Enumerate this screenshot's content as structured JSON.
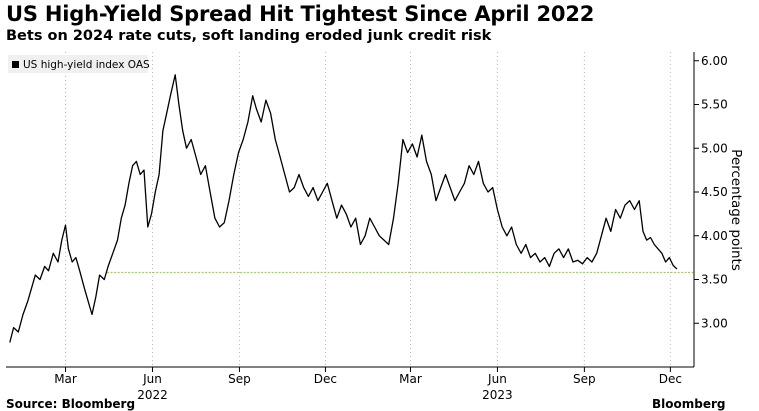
{
  "title": "US High-Yield Spread Hit Tightest Since April 2022",
  "subtitle": "Bets on 2024 rate cuts, soft landing eroded junk credit risk",
  "source": "Source: Bloomberg",
  "brand": "Bloomberg",
  "colors": {
    "line": "#000000",
    "reference": "#9bd63a",
    "grid": "#b8b8b8",
    "legend_swatch": "#000000"
  },
  "chart_data": {
    "type": "line",
    "title": "US High-Yield Spread Hit Tightest Since April 2022",
    "ylabel": "Percentage points",
    "y_axis_position": "right",
    "ylim": [
      2.5,
      6.1
    ],
    "yticks": [
      3.0,
      3.5,
      4.0,
      4.5,
      5.0,
      5.5,
      6.0
    ],
    "ytick_labels": [
      "3.00",
      "3.50",
      "4.00",
      "4.50",
      "5.00",
      "5.50",
      "6.00"
    ],
    "xticks": [
      {
        "x": "2022-03-01",
        "label": "Mar"
      },
      {
        "x": "2022-06-01",
        "label": "Jun"
      },
      {
        "x": "2022-09-01",
        "label": "Sep"
      },
      {
        "x": "2022-12-01",
        "label": "Dec"
      },
      {
        "x": "2023-03-01",
        "label": "Mar"
      },
      {
        "x": "2023-06-01",
        "label": "Jun"
      },
      {
        "x": "2023-09-01",
        "label": "Sep"
      },
      {
        "x": "2023-12-01",
        "label": "Dec"
      }
    ],
    "year_labels": [
      {
        "x": "2022-06-01",
        "label": "2022"
      },
      {
        "x": "2023-06-01",
        "label": "2023"
      }
    ],
    "grid": "vertical only",
    "legend": {
      "placement": "top-left",
      "entries": [
        "US high-yield index OAS"
      ]
    },
    "reference_line": {
      "y": 3.58,
      "color": "#9bd63a",
      "style": "dotted"
    },
    "series": [
      {
        "name": "US high-yield index OAS",
        "points": [
          [
            "2022-01-01",
            2.78
          ],
          [
            "2022-01-05",
            2.95
          ],
          [
            "2022-01-10",
            2.9
          ],
          [
            "2022-01-15",
            3.1
          ],
          [
            "2022-01-20",
            3.25
          ],
          [
            "2022-01-24",
            3.4
          ],
          [
            "2022-01-28",
            3.55
          ],
          [
            "2022-02-02",
            3.5
          ],
          [
            "2022-02-07",
            3.65
          ],
          [
            "2022-02-11",
            3.6
          ],
          [
            "2022-02-16",
            3.8
          ],
          [
            "2022-02-21",
            3.7
          ],
          [
            "2022-02-25",
            3.95
          ],
          [
            "2022-03-01",
            4.12
          ],
          [
            "2022-03-04",
            3.85
          ],
          [
            "2022-03-08",
            3.7
          ],
          [
            "2022-03-12",
            3.75
          ],
          [
            "2022-03-16",
            3.6
          ],
          [
            "2022-03-21",
            3.4
          ],
          [
            "2022-03-25",
            3.25
          ],
          [
            "2022-03-29",
            3.1
          ],
          [
            "2022-04-02",
            3.3
          ],
          [
            "2022-04-06",
            3.55
          ],
          [
            "2022-04-11",
            3.5
          ],
          [
            "2022-04-15",
            3.65
          ],
          [
            "2022-04-20",
            3.8
          ],
          [
            "2022-04-25",
            3.95
          ],
          [
            "2022-04-29",
            4.2
          ],
          [
            "2022-05-03",
            4.35
          ],
          [
            "2022-05-07",
            4.6
          ],
          [
            "2022-05-11",
            4.8
          ],
          [
            "2022-05-15",
            4.85
          ],
          [
            "2022-05-19",
            4.7
          ],
          [
            "2022-05-23",
            4.75
          ],
          [
            "2022-05-27",
            4.1
          ],
          [
            "2022-05-31",
            4.25
          ],
          [
            "2022-06-04",
            4.5
          ],
          [
            "2022-06-08",
            4.7
          ],
          [
            "2022-06-12",
            5.2
          ],
          [
            "2022-06-16",
            5.4
          ],
          [
            "2022-06-20",
            5.6
          ],
          [
            "2022-06-25",
            5.84
          ],
          [
            "2022-06-29",
            5.5
          ],
          [
            "2022-07-03",
            5.2
          ],
          [
            "2022-07-07",
            5.0
          ],
          [
            "2022-07-12",
            5.1
          ],
          [
            "2022-07-17",
            4.9
          ],
          [
            "2022-07-22",
            4.7
          ],
          [
            "2022-07-27",
            4.8
          ],
          [
            "2022-08-01",
            4.5
          ],
          [
            "2022-08-06",
            4.2
          ],
          [
            "2022-08-11",
            4.1
          ],
          [
            "2022-08-16",
            4.15
          ],
          [
            "2022-08-21",
            4.4
          ],
          [
            "2022-08-26",
            4.7
          ],
          [
            "2022-08-31",
            4.95
          ],
          [
            "2022-09-05",
            5.1
          ],
          [
            "2022-09-10",
            5.3
          ],
          [
            "2022-09-15",
            5.6
          ],
          [
            "2022-09-19",
            5.45
          ],
          [
            "2022-09-24",
            5.3
          ],
          [
            "2022-09-29",
            5.55
          ],
          [
            "2022-10-04",
            5.4
          ],
          [
            "2022-10-09",
            5.1
          ],
          [
            "2022-10-14",
            4.9
          ],
          [
            "2022-10-19",
            4.7
          ],
          [
            "2022-10-24",
            4.5
          ],
          [
            "2022-10-29",
            4.55
          ],
          [
            "2022-11-03",
            4.7
          ],
          [
            "2022-11-08",
            4.55
          ],
          [
            "2022-11-13",
            4.45
          ],
          [
            "2022-11-18",
            4.55
          ],
          [
            "2022-11-23",
            4.4
          ],
          [
            "2022-11-28",
            4.5
          ],
          [
            "2022-12-03",
            4.6
          ],
          [
            "2022-12-08",
            4.4
          ],
          [
            "2022-12-13",
            4.2
          ],
          [
            "2022-12-18",
            4.35
          ],
          [
            "2022-12-23",
            4.25
          ],
          [
            "2022-12-28",
            4.1
          ],
          [
            "2023-01-02",
            4.2
          ],
          [
            "2023-01-07",
            3.9
          ],
          [
            "2023-01-12",
            4.0
          ],
          [
            "2023-01-17",
            4.2
          ],
          [
            "2023-01-22",
            4.1
          ],
          [
            "2023-01-27",
            4.0
          ],
          [
            "2023-02-01",
            3.95
          ],
          [
            "2023-02-06",
            3.9
          ],
          [
            "2023-02-11",
            4.2
          ],
          [
            "2023-02-16",
            4.6
          ],
          [
            "2023-02-21",
            5.1
          ],
          [
            "2023-02-26",
            4.95
          ],
          [
            "2023-03-03",
            5.05
          ],
          [
            "2023-03-08",
            4.9
          ],
          [
            "2023-03-13",
            5.15
          ],
          [
            "2023-03-18",
            4.85
          ],
          [
            "2023-03-23",
            4.7
          ],
          [
            "2023-03-28",
            4.4
          ],
          [
            "2023-04-02",
            4.55
          ],
          [
            "2023-04-07",
            4.7
          ],
          [
            "2023-04-12",
            4.55
          ],
          [
            "2023-04-17",
            4.4
          ],
          [
            "2023-04-22",
            4.5
          ],
          [
            "2023-04-27",
            4.6
          ],
          [
            "2023-05-02",
            4.8
          ],
          [
            "2023-05-07",
            4.7
          ],
          [
            "2023-05-12",
            4.85
          ],
          [
            "2023-05-17",
            4.6
          ],
          [
            "2023-05-22",
            4.5
          ],
          [
            "2023-05-27",
            4.55
          ],
          [
            "2023-06-01",
            4.3
          ],
          [
            "2023-06-06",
            4.1
          ],
          [
            "2023-06-11",
            4.0
          ],
          [
            "2023-06-16",
            4.1
          ],
          [
            "2023-06-21",
            3.9
          ],
          [
            "2023-06-26",
            3.8
          ],
          [
            "2023-07-01",
            3.9
          ],
          [
            "2023-07-06",
            3.75
          ],
          [
            "2023-07-11",
            3.8
          ],
          [
            "2023-07-16",
            3.7
          ],
          [
            "2023-07-21",
            3.75
          ],
          [
            "2023-07-26",
            3.65
          ],
          [
            "2023-07-31",
            3.8
          ],
          [
            "2023-08-05",
            3.85
          ],
          [
            "2023-08-10",
            3.75
          ],
          [
            "2023-08-15",
            3.85
          ],
          [
            "2023-08-20",
            3.7
          ],
          [
            "2023-08-25",
            3.72
          ],
          [
            "2023-08-30",
            3.68
          ],
          [
            "2023-09-04",
            3.75
          ],
          [
            "2023-09-09",
            3.7
          ],
          [
            "2023-09-14",
            3.8
          ],
          [
            "2023-09-19",
            4.0
          ],
          [
            "2023-09-24",
            4.2
          ],
          [
            "2023-09-29",
            4.05
          ],
          [
            "2023-10-04",
            4.3
          ],
          [
            "2023-10-09",
            4.2
          ],
          [
            "2023-10-14",
            4.35
          ],
          [
            "2023-10-19",
            4.4
          ],
          [
            "2023-10-24",
            4.3
          ],
          [
            "2023-10-29",
            4.4
          ],
          [
            "2023-11-02",
            4.05
          ],
          [
            "2023-11-06",
            3.95
          ],
          [
            "2023-11-10",
            3.98
          ],
          [
            "2023-11-14",
            3.9
          ],
          [
            "2023-11-18",
            3.85
          ],
          [
            "2023-11-22",
            3.8
          ],
          [
            "2023-11-26",
            3.7
          ],
          [
            "2023-11-30",
            3.75
          ],
          [
            "2023-12-04",
            3.66
          ],
          [
            "2023-12-08",
            3.62
          ]
        ]
      }
    ]
  }
}
